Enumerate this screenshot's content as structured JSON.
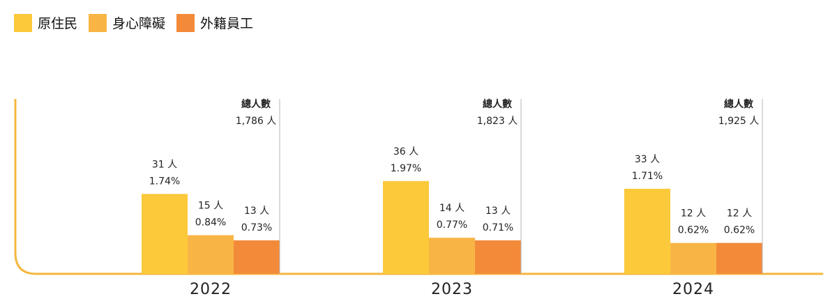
{
  "chart_data": {
    "type": "bar",
    "categories": [
      "2022",
      "2023",
      "2024"
    ],
    "series": [
      {
        "name": "原住民",
        "color": "#fcc93a",
        "values": [
          31,
          36,
          33
        ],
        "count_labels": [
          "31 人",
          "36 人",
          "33 人"
        ],
        "pct_labels": [
          "1.74%",
          "1.97%",
          "1.71%"
        ]
      },
      {
        "name": "身心障礙",
        "color": "#f8b545",
        "values": [
          15,
          14,
          12
        ],
        "count_labels": [
          "15 人",
          "14 人",
          "12 人"
        ],
        "pct_labels": [
          "0.84%",
          "0.77%",
          "0.62%"
        ]
      },
      {
        "name": "外籍員工",
        "color": "#f38a3a",
        "values": [
          13,
          13,
          12
        ],
        "count_labels": [
          "13 人",
          "13 人",
          "12 人"
        ],
        "pct_labels": [
          "0.73%",
          "0.71%",
          "0.62%"
        ]
      }
    ],
    "totals": {
      "label": "總人數",
      "values": [
        1786,
        1823,
        1925
      ],
      "value_labels": [
        "1,786 人",
        "1,823 人",
        "1,925 人"
      ]
    },
    "ylim": [
      0,
      40
    ],
    "grid": false,
    "legend_position": "top-left",
    "axis_color": "#f4b73e"
  }
}
